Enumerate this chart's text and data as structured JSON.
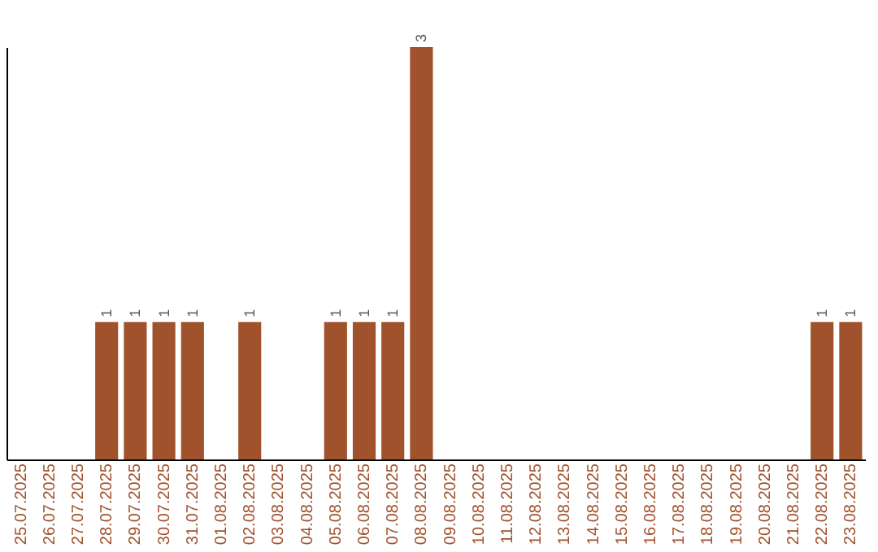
{
  "chart_data": {
    "type": "bar",
    "categories": [
      "25.07.2025",
      "26.07.2025",
      "27.07.2025",
      "28.07.2025",
      "29.07.2025",
      "30.07.2025",
      "31.07.2025",
      "01.08.2025",
      "02.08.2025",
      "03.08.2025",
      "04.08.2025",
      "05.08.2025",
      "06.08.2025",
      "07.08.2025",
      "08.08.2025",
      "09.08.2025",
      "10.08.2025",
      "11.08.2025",
      "12.08.2025",
      "13.08.2025",
      "14.08.2025",
      "15.08.2025",
      "16.08.2025",
      "17.08.2025",
      "18.08.2025",
      "19.08.2025",
      "20.08.2025",
      "21.08.2025",
      "22.08.2025",
      "23.08.2025"
    ],
    "values": [
      0,
      0,
      0,
      1,
      1,
      1,
      1,
      0,
      1,
      0,
      0,
      1,
      1,
      1,
      3,
      0,
      0,
      0,
      0,
      0,
      0,
      0,
      0,
      0,
      0,
      0,
      0,
      0,
      1,
      1
    ],
    "value_labels": [
      null,
      null,
      null,
      "1",
      "1",
      "1",
      "1",
      null,
      "1",
      null,
      null,
      "1",
      "1",
      "1",
      "3",
      null,
      null,
      null,
      null,
      null,
      null,
      null,
      null,
      null,
      null,
      null,
      null,
      null,
      "1",
      "1"
    ],
    "color": "#a0522d",
    "tick_labels": "x",
    "grid": false
  }
}
